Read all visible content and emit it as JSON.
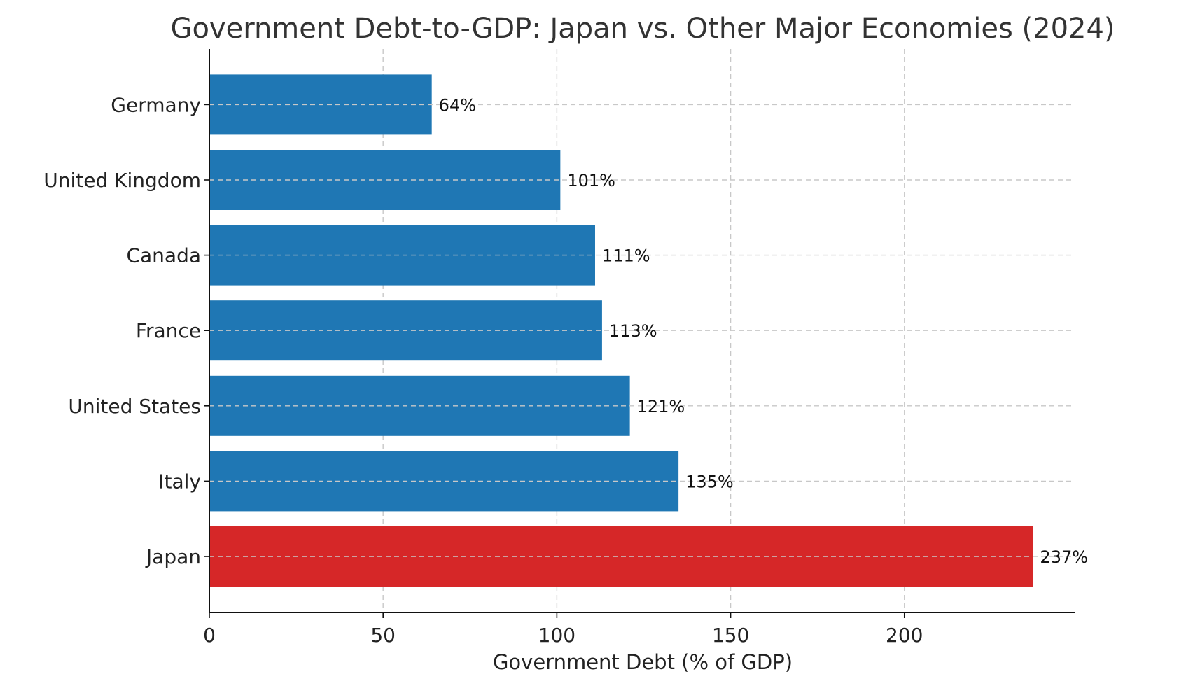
{
  "colors": {
    "default_bar": "#1f77b4",
    "highlight_bar": "#d62728"
  },
  "chart_data": {
    "type": "bar",
    "orientation": "horizontal",
    "title": "Government Debt-to-GDP: Japan vs. Other Major Economies (2024)",
    "xlabel": "Government Debt (% of GDP)",
    "ylabel": "",
    "xlim": [
      0,
      249
    ],
    "x_ticks": [
      0,
      50,
      100,
      150,
      200
    ],
    "grid": true,
    "categories": [
      "Japan",
      "Italy",
      "United States",
      "France",
      "Canada",
      "United Kingdom",
      "Germany"
    ],
    "values": [
      237,
      135,
      121,
      113,
      111,
      101,
      64
    ],
    "value_labels": [
      "237%",
      "135%",
      "121%",
      "113%",
      "111%",
      "101%",
      "64%"
    ],
    "highlight": "Japan"
  }
}
